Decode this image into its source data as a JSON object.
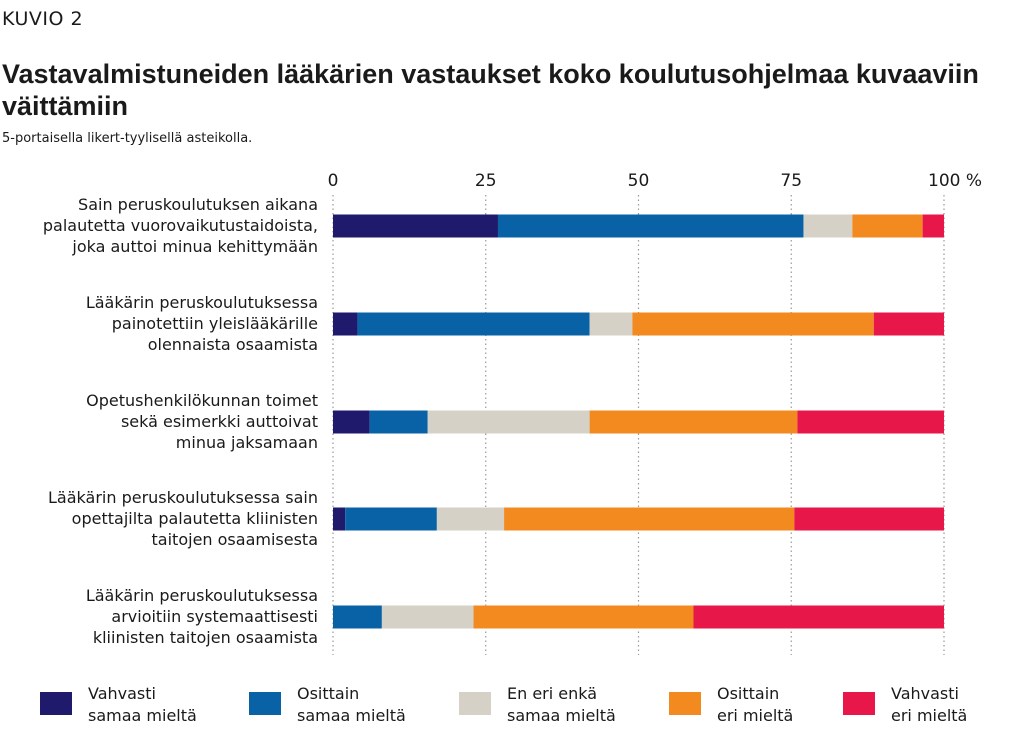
{
  "header": {
    "kicker": "KUVIO 2"
  },
  "chart_data": {
    "type": "bar",
    "orientation": "horizontal",
    "stacked": true,
    "title": "Vastavalmistuneiden lääkärien vastaukset koko koulutusohjelmaa kuvaaviin väittämiin",
    "subtitle": "5-portaisella likert-tyylisellä asteikolla.",
    "xlim": [
      0,
      100
    ],
    "x_ticks": [
      "0",
      "25",
      "50",
      "75",
      "100 %"
    ],
    "x_tick_values": [
      0,
      25,
      50,
      75,
      100
    ],
    "grid": "vertical dotted",
    "legend_position": "bottom",
    "categories": [
      [
        "Sain peruskoulutuksen aikana",
        "palautetta vuorovaikutustaidoista,",
        "joka auttoi minua kehittymään"
      ],
      [
        "Lääkärin peruskoulutuksessa",
        "painotettiin yleislääkärille",
        "olennaista osaamista"
      ],
      [
        "Opetushenkilökunnan toimet",
        "sekä esimerkki auttoivat",
        "minua jaksamaan"
      ],
      [
        "Lääkärin peruskoulutuksessa sain",
        "opettajilta palautetta kliinisten",
        "taitojen osaamisesta"
      ],
      [
        "Lääkärin peruskoulutuksessa",
        "arvioitiin systemaattisesti",
        "kliinisten taitojen osaamista"
      ]
    ],
    "series": [
      {
        "name": [
          "Vahvasti",
          "samaa mieltä"
        ],
        "color": "#1f1a6b",
        "values": [
          27,
          4,
          6,
          2,
          0
        ]
      },
      {
        "name": [
          "Osittain",
          "samaa mieltä"
        ],
        "color": "#0a62a6",
        "values": [
          50,
          38,
          9.5,
          15,
          8
        ]
      },
      {
        "name": [
          "En eri enkä",
          "samaa mieltä"
        ],
        "color": "#d5d1c7",
        "values": [
          8,
          7,
          26.5,
          11,
          15
        ]
      },
      {
        "name": [
          "Osittain",
          "eri mieltä"
        ],
        "color": "#f28a20",
        "values": [
          11.5,
          39.5,
          34,
          47.5,
          36
        ]
      },
      {
        "name": [
          "Vahvasti",
          "eri mieltä"
        ],
        "color": "#e8174a",
        "values": [
          3.5,
          11.5,
          24,
          24.5,
          41
        ]
      }
    ]
  }
}
